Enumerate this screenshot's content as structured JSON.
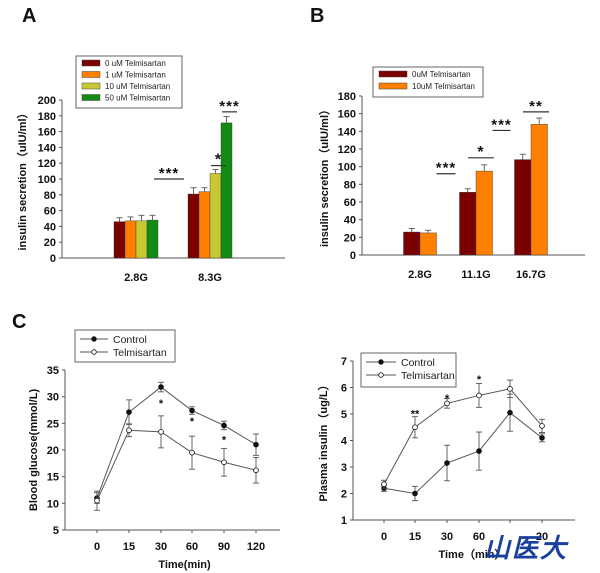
{
  "chart_data": [
    {
      "id": "A",
      "panel_label": "A",
      "type": "bar",
      "title": "",
      "xlabel": "",
      "ylabel": "insulin secretion（uIU/ml）",
      "ylim": [
        0,
        200
      ],
      "yticks": [
        "0",
        "20",
        "40",
        "60",
        "80",
        "100",
        "120",
        "140",
        "160",
        "180",
        "200"
      ],
      "categories": [
        "2.8G",
        "8.3G"
      ],
      "legend_position": "top-left",
      "series": [
        {
          "name": "0 uM Telmisartan",
          "color": "#7b0000",
          "values": [
            46,
            81
          ],
          "errors": [
            5,
            8
          ]
        },
        {
          "name": "1 uM  Telmisartan",
          "color": "#ff8000",
          "values": [
            47,
            84
          ],
          "errors": [
            5,
            5
          ]
        },
        {
          "name": "10 uM Telmisartan",
          "color": "#c8c832",
          "values": [
            47,
            107
          ],
          "errors": [
            7,
            5
          ]
        },
        {
          "name": "50 uM Telmisartan",
          "color": "#138a13",
          "values": [
            48,
            171
          ],
          "errors": [
            6,
            8
          ]
        }
      ],
      "annotations": [
        {
          "text": "***",
          "from": "2.8G",
          "to": "8.3G",
          "level": 100
        },
        {
          "text": "*",
          "category": "8.3G",
          "level": 117
        },
        {
          "text": "***",
          "category": "8.3G",
          "level": 185
        }
      ]
    },
    {
      "id": "B",
      "panel_label": "B",
      "type": "bar",
      "title": "",
      "xlabel": "",
      "ylabel": "insulin secretion（uIU/ml）",
      "ylim": [
        0,
        180
      ],
      "yticks": [
        "0",
        "20",
        "40",
        "60",
        "80",
        "100",
        "120",
        "140",
        "160",
        "180"
      ],
      "categories": [
        "2.8G",
        "11.1G",
        "16.7G"
      ],
      "legend_position": "top-left",
      "series": [
        {
          "name": "0uM  Telmisartan",
          "color": "#7b0000",
          "values": [
            26,
            71,
            108
          ],
          "errors": [
            4,
            4,
            6
          ]
        },
        {
          "name": "10uM Telmisartan",
          "color": "#ff8000",
          "values": [
            25,
            95,
            148
          ],
          "errors": [
            3,
            7,
            7
          ]
        }
      ],
      "annotations": [
        {
          "text": "***",
          "from": "2.8G",
          "to": "11.1G",
          "level": 92
        },
        {
          "text": "*",
          "category": "11.1G",
          "level": 110
        },
        {
          "text": "***",
          "from": "11.1G",
          "to": "16.7G",
          "level": 141
        },
        {
          "text": "**",
          "category": "16.7G",
          "level": 162
        }
      ]
    },
    {
      "id": "C-left",
      "panel_label": "C",
      "type": "line",
      "title": "",
      "xlabel": "Time(min)",
      "ylabel": "Blood glucose(mmol/L)",
      "ylim": [
        5,
        35
      ],
      "yticks": [
        "5",
        "10",
        "15",
        "20",
        "25",
        "30",
        "35"
      ],
      "x": [
        "0",
        "15",
        "30",
        "60",
        "90",
        "120"
      ],
      "legend_position": "top-left",
      "series": [
        {
          "name": "Control",
          "marker": "filled-circle",
          "values": [
            11.0,
            27.1,
            31.8,
            27.4,
            24.6,
            21.0
          ],
          "errors": [
            1.0,
            2.3,
            0.9,
            0.7,
            0.8,
            2.0
          ]
        },
        {
          "name": "Telmisartan",
          "marker": "open-circle",
          "values": [
            10.5,
            23.7,
            23.4,
            19.5,
            17.7,
            16.2
          ],
          "errors": [
            1.8,
            1.2,
            3.0,
            3.1,
            2.6,
            2.4
          ]
        }
      ],
      "annotations": [
        {
          "text": "*",
          "x": "30",
          "y": 29.0
        },
        {
          "text": "*",
          "x": "60",
          "y": 25.6
        },
        {
          "text": "*",
          "x": "90",
          "y": 22.2
        }
      ]
    },
    {
      "id": "C-right",
      "panel_label": "",
      "type": "line",
      "title": "",
      "xlabel": "Time（min）",
      "ylabel": "Plasma insulin（ug/L）",
      "ylim": [
        1,
        7
      ],
      "yticks": [
        "1",
        "2",
        "3",
        "4",
        "5",
        "6",
        "7"
      ],
      "x": [
        "0",
        "15",
        "30",
        "60",
        "90",
        "120"
      ],
      "x_visible_labels": [
        "0",
        "15",
        "30",
        "60",
        "",
        "20"
      ],
      "legend_position": "top-left",
      "series": [
        {
          "name": "Control",
          "marker": "filled-circle",
          "values": [
            2.2,
            2.0,
            3.15,
            3.6,
            5.05,
            4.1
          ],
          "errors": [
            0.12,
            0.27,
            0.67,
            0.72,
            0.7,
            0.15
          ]
        },
        {
          "name": "Telmisartan",
          "marker": "open-circle",
          "values": [
            2.35,
            4.5,
            5.4,
            5.7,
            5.95,
            4.55
          ],
          "errors": [
            0.15,
            0.4,
            0.18,
            0.45,
            0.33,
            0.25
          ]
        }
      ],
      "annotations": [
        {
          "text": "**",
          "x": "15",
          "y": 5.05
        },
        {
          "text": "*",
          "x": "30",
          "y": 5.65
        },
        {
          "text": "*",
          "x": "60",
          "y": 6.35
        }
      ]
    }
  ],
  "watermark": {
    "text": "山医大",
    "color": "#1a3f9c"
  }
}
